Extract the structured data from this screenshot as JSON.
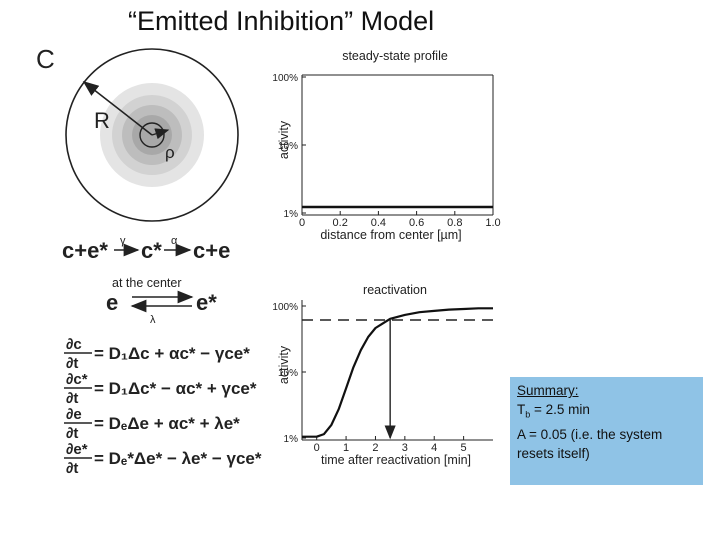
{
  "title": "“Emitted Inhibition” Model",
  "panel_label": "C",
  "diagram": {
    "radius_label": "R",
    "rho_label": "ρ"
  },
  "reactions": {
    "r1_left": "c+e*",
    "r1_middle": "c*",
    "r1_right": "c+e",
    "gamma": "γ",
    "alpha": "α",
    "at_center": "at the center",
    "r2_left": "e",
    "r2_right": "e*",
    "lambda": "λ"
  },
  "equations": [
    {
      "lhs_top": "∂c",
      "lhs_bottom": "∂t",
      "rhs": "= D₁Δc + αc* − γce*"
    },
    {
      "lhs_top": "∂c*",
      "lhs_bottom": "∂t",
      "rhs": "= D₁Δc* − αc* + γce*"
    },
    {
      "lhs_top": "∂e",
      "lhs_bottom": "∂t",
      "rhs": "= DₑΔe + αc* + λe*"
    },
    {
      "lhs_top": "∂e*",
      "lhs_bottom": "∂t",
      "rhs": "= Dₑ*Δe* − λe* − γce*"
    }
  ],
  "chart_data": [
    {
      "type": "line",
      "title": "steady-state profile",
      "xlabel": "distance from center [µm]",
      "ylabel": "activity",
      "xlim": [
        0,
        1.0
      ],
      "ylim": [
        0,
        100
      ],
      "x_ticks": [
        "0",
        "0.2",
        "0.4",
        "0.6",
        "0.8",
        "1.0"
      ],
      "x_tick_values": [
        0,
        0.2,
        0.4,
        0.6,
        0.8,
        1.0
      ],
      "y_ticks": [
        "1%",
        "10%",
        "100%"
      ],
      "y_tick_values": [
        1,
        10,
        100
      ],
      "series": [
        {
          "x": [
            0,
            0.2,
            0.4,
            0.6,
            0.8,
            1.0
          ],
          "y": [
            5,
            5,
            5,
            5,
            5,
            5
          ]
        }
      ]
    },
    {
      "type": "line",
      "title": "reactivation",
      "xlabel": "time after reactivation [min]",
      "ylabel": "activity",
      "xlim": [
        -0.5,
        6
      ],
      "ylim": [
        0,
        100
      ],
      "x_ticks": [
        "0",
        "1",
        "2",
        "3",
        "4",
        "5"
      ],
      "x_tick_values": [
        0,
        1,
        2,
        3,
        4,
        5
      ],
      "y_ticks": [
        "1%",
        "10%",
        "100%"
      ],
      "y_tick_values": [
        1,
        10,
        100
      ],
      "series": [
        {
          "x": [
            -0.5,
            0,
            0.25,
            0.5,
            0.75,
            1.0,
            1.25,
            1.5,
            1.75,
            2.0,
            2.5,
            3.0,
            3.5,
            4.0,
            4.5,
            5.0,
            5.5,
            6.0
          ],
          "y": [
            1,
            1,
            3,
            10,
            22,
            38,
            54,
            67,
            77,
            84,
            91,
            94,
            96,
            97,
            98,
            98.5,
            99,
            99
          ]
        }
      ],
      "threshold_y": 90,
      "marker_x": 2.5
    }
  ],
  "summary": {
    "heading": "Summary:",
    "tb_prefix": "T",
    "tb_sub": "b",
    "tb_value": " = 2.5 min",
    "a_line": "A = 0.05 (i.e. the system resets itself)"
  }
}
